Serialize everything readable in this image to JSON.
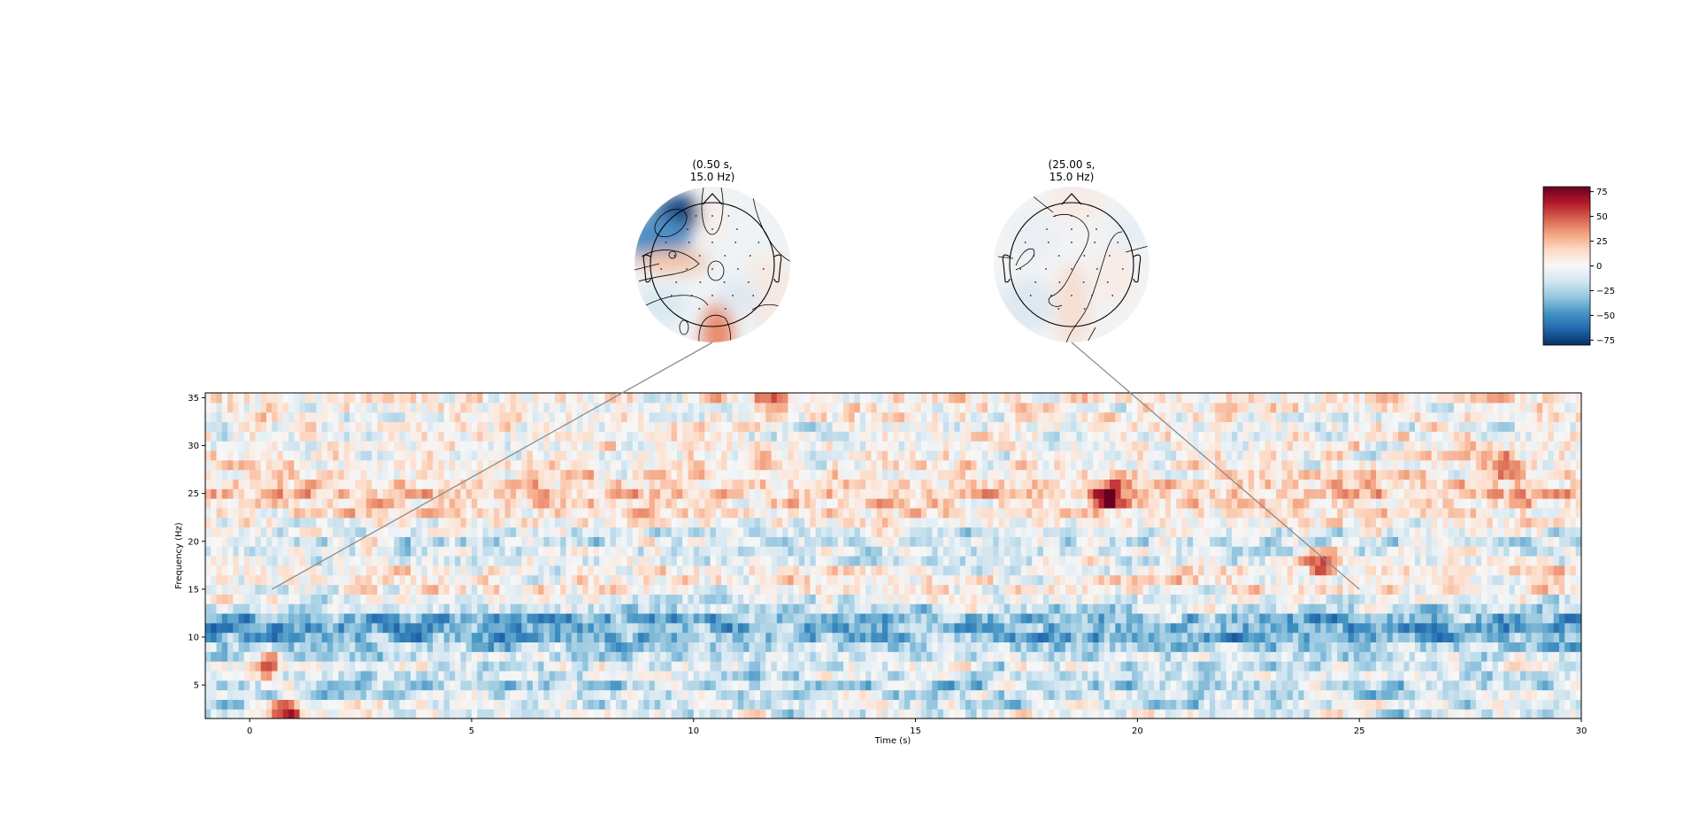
{
  "chart_data": {
    "type": "heatmap",
    "subtype": "time-frequency representation with topomap insets",
    "xlabel": "Time (s)",
    "ylabel": "Frequency (Hz)",
    "xlim": [
      -1,
      30
    ],
    "ylim": [
      1.5,
      35.5
    ],
    "xticks": [
      0,
      5,
      10,
      15,
      20,
      25,
      30
    ],
    "yticks": [
      5,
      10,
      15,
      20,
      25,
      30,
      35
    ],
    "colormap": "RdBu_r",
    "colorbar": {
      "vmin": -80,
      "vmax": 80,
      "ticks": [
        75,
        50,
        25,
        0,
        -25,
        -50,
        -75
      ]
    },
    "frequencies_hz": [
      2,
      3,
      4,
      5,
      6,
      7,
      8,
      9,
      10,
      11,
      12,
      13,
      14,
      15,
      16,
      17,
      18,
      19,
      20,
      21,
      22,
      23,
      24,
      25,
      26,
      27,
      28,
      29,
      30,
      31,
      32,
      33,
      34,
      35
    ],
    "band_mean_power": [
      -8,
      -12,
      -15,
      -18,
      -14,
      -10,
      -18,
      -25,
      -35,
      -40,
      -35,
      -15,
      -5,
      2,
      5,
      3,
      -5,
      -10,
      -12,
      -8,
      3,
      8,
      15,
      18,
      14,
      10,
      5,
      3,
      2,
      0,
      -3,
      2,
      5,
      8
    ],
    "highlights": [
      {
        "time_s": 0.3,
        "freq_hz": 7,
        "value": 65
      },
      {
        "time_s": 0.8,
        "freq_hz": 2,
        "value": 75
      },
      {
        "time_s": 19.3,
        "freq_hz": 25,
        "value": 80
      },
      {
        "time_s": 24.0,
        "freq_hz": 18,
        "value": 55
      },
      {
        "time_s": 28.3,
        "freq_hz": 28,
        "value": 60
      },
      {
        "time_s": 11.6,
        "freq_hz": 35,
        "value": 55
      }
    ],
    "topomaps": [
      {
        "time_s": 0.5,
        "freq_hz": 15.0,
        "title": "(0.50 s,\n 15.0 Hz)",
        "title_lines": [
          "(0.50 s,",
          "15.0 Hz)"
        ]
      },
      {
        "time_s": 25.0,
        "freq_hz": 15.0,
        "title": "(25.00 s,\n 15.0 Hz)",
        "title_lines": [
          "(25.00 s,",
          "15.0 Hz)"
        ]
      }
    ]
  }
}
